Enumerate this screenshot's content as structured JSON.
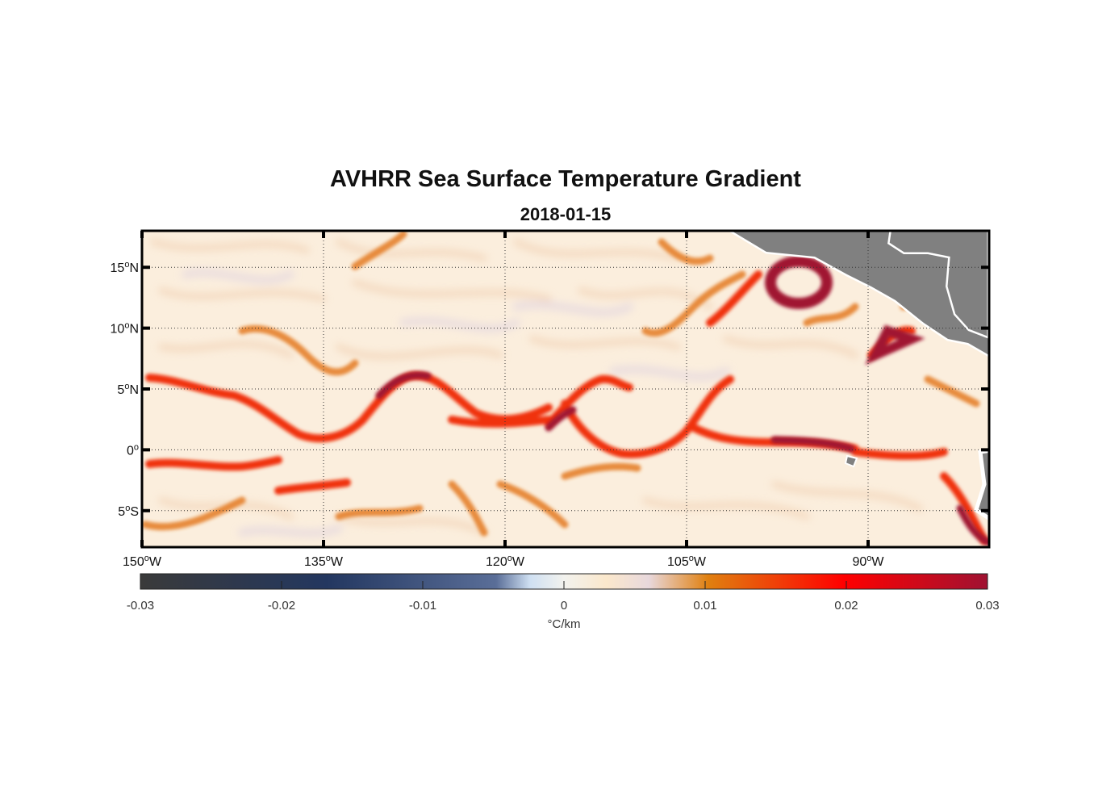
{
  "chart_data": {
    "type": "heatmap",
    "title": "AVHRR Sea Surface Temperature Gradient",
    "subtitle": "2018-01-15",
    "lon_range": [
      -150,
      -80
    ],
    "lat_range": [
      -8,
      18
    ],
    "x_ticks": [
      {
        "value": -150,
        "deg": "150",
        "hemi": "W"
      },
      {
        "value": -135,
        "deg": "135",
        "hemi": "W"
      },
      {
        "value": -120,
        "deg": "120",
        "hemi": "W"
      },
      {
        "value": -105,
        "deg": "105",
        "hemi": "W"
      },
      {
        "value": -90,
        "deg": "90",
        "hemi": "W"
      }
    ],
    "y_ticks": [
      {
        "value": 15,
        "deg": "15",
        "hemi": "N"
      },
      {
        "value": 10,
        "deg": "10",
        "hemi": "N"
      },
      {
        "value": 5,
        "deg": "5",
        "hemi": "N"
      },
      {
        "value": 0,
        "deg": "0",
        "hemi": ""
      },
      {
        "value": -5,
        "deg": "5",
        "hemi": "S"
      }
    ],
    "grid": true,
    "colorbar": {
      "range": [
        -0.03,
        0.03
      ],
      "ticks": [
        -0.03,
        -0.02,
        -0.01,
        0,
        0.01,
        0.02,
        0.03
      ],
      "tick_labels": [
        "-0.03",
        "-0.02",
        "-0.01",
        "0",
        "0.01",
        "0.02",
        "0.03"
      ],
      "label": "°C/km",
      "colors": [
        "#3a3a3a",
        "#233760",
        "#5a6e98",
        "#cfe0f2",
        "#f2f2ee",
        "#fbe8cc",
        "#e8d8dc",
        "#e08010",
        "#ff0000",
        "#a01232"
      ]
    },
    "land_color": "#808080",
    "ocean_background": "#fbeedd"
  }
}
